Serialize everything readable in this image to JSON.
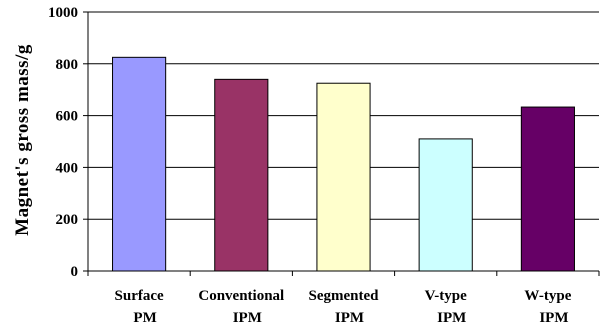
{
  "chart_data": {
    "type": "bar",
    "categories": [
      [
        "Surface",
        "PM"
      ],
      [
        "Conventional",
        "IPM"
      ],
      [
        "Segmented",
        "IPM"
      ],
      [
        "V-type",
        "IPM"
      ],
      [
        "W-type",
        "IPM"
      ]
    ],
    "values": [
      825,
      740,
      725,
      510,
      633
    ],
    "colors": [
      "#9999ff",
      "#993366",
      "#ffffcc",
      "#ccffff",
      "#660066"
    ],
    "title": "",
    "xlabel": "",
    "ylabel": "Magnet's gross mass/g",
    "ylim": [
      0,
      1000
    ],
    "yticks": [
      0,
      200,
      400,
      600,
      800,
      1000
    ],
    "grid": true,
    "legend": "none"
  }
}
